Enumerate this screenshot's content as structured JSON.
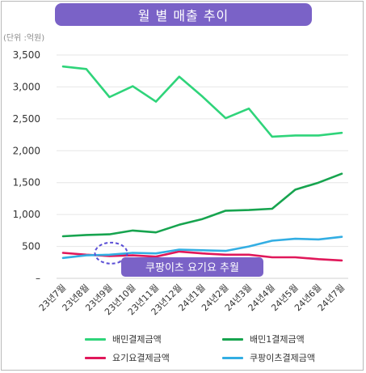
{
  "header": {
    "title": "월 별 매출 추이"
  },
  "unit_note": "(단위 :억원)",
  "chart_data": {
    "type": "line",
    "title": "월 별 매출 추이",
    "xlabel": "",
    "ylabel": "",
    "x": [
      "23년7월",
      "23년8월",
      "23년9월",
      "23년10월",
      "23년11월",
      "23년12월",
      "24년1월",
      "24년2월",
      "24년3월",
      "24년4월",
      "24년5월",
      "24년6월",
      "24년7월"
    ],
    "ylim": [
      0,
      3500
    ],
    "yticks": [
      {
        "value": 0,
        "label": "–"
      },
      {
        "value": 500,
        "label": "500"
      },
      {
        "value": 1000,
        "label": "1,000"
      },
      {
        "value": 1500,
        "label": "1,500"
      },
      {
        "value": 2000,
        "label": "2,000"
      },
      {
        "value": 2500,
        "label": "2,500"
      },
      {
        "value": 3000,
        "label": "3,000"
      },
      {
        "value": 3500,
        "label": "3,500"
      }
    ],
    "grid": true,
    "legend": "bottom",
    "series": [
      {
        "name": "배민결제금액",
        "color": "#2fd47a",
        "values": [
          3320,
          3280,
          2840,
          3010,
          2770,
          3160,
          2850,
          2510,
          2660,
          2220,
          2240,
          2240,
          2280
        ]
      },
      {
        "name": "배민1결제금액",
        "color": "#17a44f",
        "values": [
          660,
          680,
          690,
          750,
          720,
          840,
          930,
          1060,
          1070,
          1090,
          1390,
          1500,
          1640
        ]
      },
      {
        "name": "요기요결제금액",
        "color": "#e0185a",
        "values": [
          400,
          370,
          350,
          360,
          340,
          420,
          390,
          370,
          370,
          330,
          330,
          300,
          280
        ]
      },
      {
        "name": "쿠팡이츠결제금액",
        "color": "#33aee3",
        "values": [
          320,
          360,
          370,
          400,
          390,
          450,
          440,
          430,
          500,
          590,
          620,
          610,
          650
        ]
      }
    ],
    "annotation": {
      "text": "쿠팡이츠 요기요 추월",
      "x_index": 2,
      "value": 370,
      "box_color": "#7a62c7",
      "circle_color": "#5b4fd6"
    }
  }
}
